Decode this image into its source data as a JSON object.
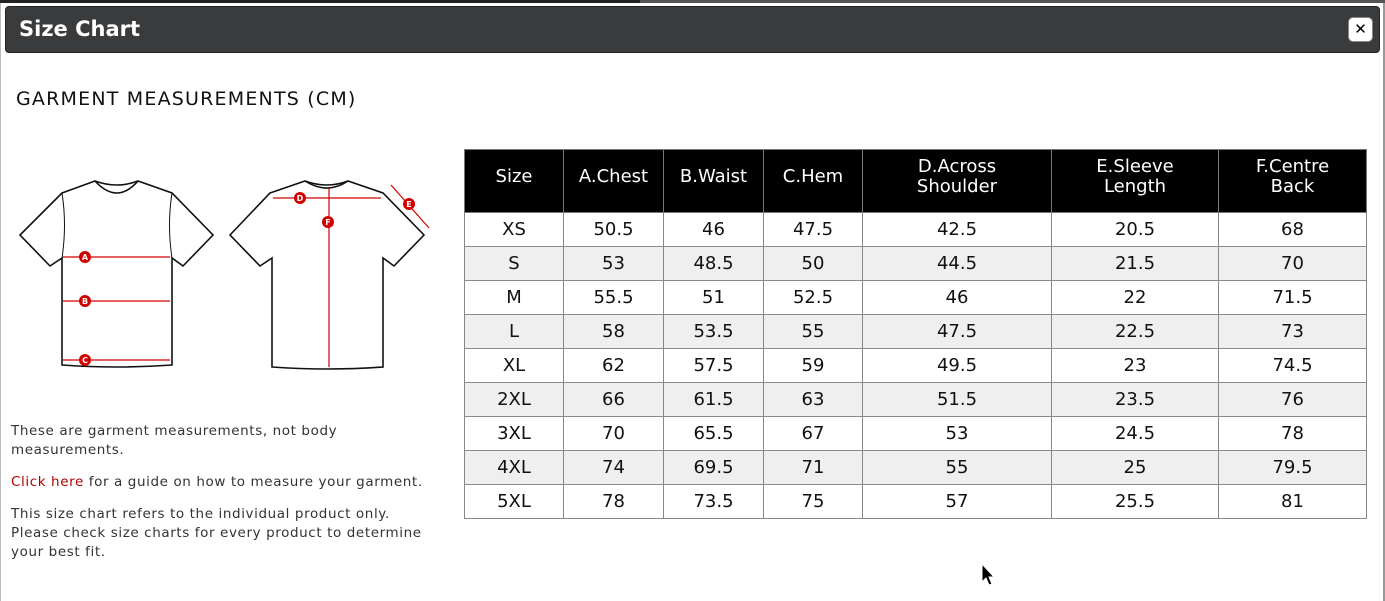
{
  "dialog": {
    "title": "Size Chart",
    "close_icon": "close-icon"
  },
  "heading": "GARMENT MEASUREMENTS (CM)",
  "diagram": {
    "front_labels": [
      "A",
      "B",
      "C"
    ],
    "back_labels": [
      "D",
      "F",
      "E"
    ]
  },
  "notes": {
    "line1": "These are garment measurements, not body measurements.",
    "link": "Click here",
    "line2_rest": " for a guide on how to measure your garment.",
    "line3": "This size chart refers to the individual product only. Please check size charts for every product to determine your best fit."
  },
  "table": {
    "headers": [
      "Size",
      "A.Chest",
      "B.Waist",
      "C.Hem",
      "D.Across Shoulder",
      "E.Sleeve Length",
      "F.Centre Back"
    ],
    "rows": [
      [
        "XS",
        "50.5",
        "46",
        "47.5",
        "42.5",
        "20.5",
        "68"
      ],
      [
        "S",
        "53",
        "48.5",
        "50",
        "44.5",
        "21.5",
        "70"
      ],
      [
        "M",
        "55.5",
        "51",
        "52.5",
        "46",
        "22",
        "71.5"
      ],
      [
        "L",
        "58",
        "53.5",
        "55",
        "47.5",
        "22.5",
        "73"
      ],
      [
        "XL",
        "62",
        "57.5",
        "59",
        "49.5",
        "23",
        "74.5"
      ],
      [
        "2XL",
        "66",
        "61.5",
        "63",
        "51.5",
        "23.5",
        "76"
      ],
      [
        "3XL",
        "70",
        "65.5",
        "67",
        "53",
        "24.5",
        "78"
      ],
      [
        "4XL",
        "74",
        "69.5",
        "71",
        "55",
        "25",
        "79.5"
      ],
      [
        "5XL",
        "78",
        "73.5",
        "75",
        "57",
        "25.5",
        "81"
      ]
    ]
  },
  "colors": {
    "header_bg": "#3a3b3d",
    "table_header": "#000000",
    "link": "#b00000",
    "marker": "#d00000"
  }
}
